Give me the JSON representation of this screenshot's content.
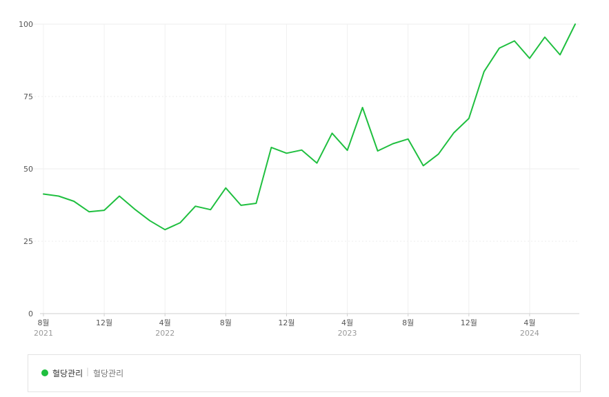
{
  "chart_data": {
    "type": "line",
    "ylim": [
      0,
      100
    ],
    "yticks": [
      "0",
      "25",
      "50",
      "75",
      "100"
    ],
    "x_month_labels": [
      "8월",
      "12월",
      "4월",
      "8월",
      "12월",
      "4월",
      "8월",
      "12월",
      "4월"
    ],
    "x_year_labels": [
      "2021",
      "2022",
      "2023",
      "2024"
    ],
    "x": [
      "2021-08",
      "2021-09",
      "2021-10",
      "2021-11",
      "2021-12",
      "2022-01",
      "2022-02",
      "2022-03",
      "2022-04",
      "2022-05",
      "2022-06",
      "2022-07",
      "2022-08",
      "2022-09",
      "2022-10",
      "2022-11",
      "2022-12",
      "2023-01",
      "2023-02",
      "2023-03",
      "2023-04",
      "2023-05",
      "2023-06",
      "2023-07",
      "2023-08",
      "2023-09",
      "2023-10",
      "2023-11",
      "2023-12",
      "2024-01",
      "2024-02",
      "2024-03",
      "2024-04",
      "2024-05",
      "2024-06",
      "2024-07"
    ],
    "series": [
      {
        "name": "혈당관리",
        "color": "#1fbf3f",
        "values": [
          41.3,
          40.6,
          38.8,
          35.2,
          35.7,
          40.6,
          36.1,
          32.1,
          29.0,
          31.4,
          37.1,
          35.9,
          43.4,
          37.4,
          38.1,
          57.4,
          55.4,
          56.5,
          52.0,
          62.3,
          56.4,
          71.2,
          56.2,
          58.7,
          60.3,
          51.1,
          55.1,
          62.4,
          67.4,
          83.6,
          91.7,
          94.2,
          88.2,
          95.5,
          89.4,
          100
        ]
      }
    ],
    "grid": true,
    "legend": "bottom"
  },
  "legend": {
    "name": "혈당관리",
    "keyword": "혈당관리",
    "separator": "|",
    "color": "#1fbf3f"
  }
}
